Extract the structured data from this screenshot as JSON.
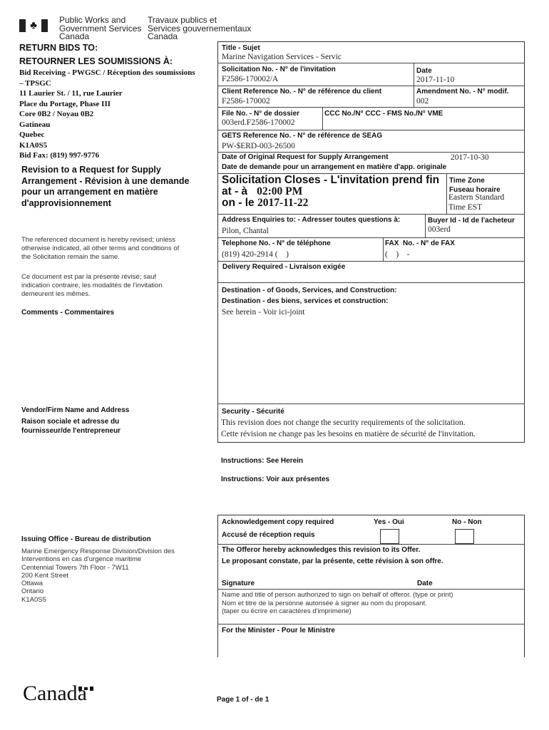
{
  "header": {
    "dept_en": [
      "Public Works and",
      "Government Services",
      "Canada"
    ],
    "dept_fr": [
      "Travaux publics et",
      "Services gouvernementaux",
      "Canada"
    ]
  },
  "return_bids": {
    "title_en": "RETURN BIDS TO:",
    "title_fr": "RETOURNER LES SOUMISSIONS À:",
    "lines": [
      "Bid Receiving - PWGSC / Réception des soumissions",
      "– TPSGC",
      "11 Laurier St. / 11, rue Laurier",
      "Place du Portage, Phase III",
      "Core 0B2 / Noyau 0B2",
      "Gatineau",
      "Quebec",
      "K1A0S5",
      "Bid Fax: (819) 997-9776"
    ]
  },
  "doc_title": [
    "Revision to a Request for Supply",
    "Arrangement - Révision à une demande",
    "pour un arrangement en matière",
    "d'approvisionnement"
  ],
  "notice_en": [
    "The referenced document is hereby revised; unless",
    "otherwise indicated, all other terms and conditions of",
    "the Solicitation remain the same."
  ],
  "notice_fr": [
    "Ce document est par la présente révisé; sauf",
    "indication contraire, les modalités de l'invitation",
    "demeurent les mêmes."
  ],
  "comments_label": "Comments - Commentaires",
  "vendor": {
    "label1": "Vendor/Firm Name and Address",
    "label2": "Raison sociale et adresse du",
    "label3": "fournisseur/de l'entrepreneur"
  },
  "issuing": {
    "label": "Issuing Office - Bureau de distribution",
    "lines": [
      "Marine Emergency Response Division/Division des",
      "Interventions en cas d'urgence maritime",
      "Centennial Towers 7th Floor - 7W11",
      "200 Kent Street",
      "Ottawa",
      "Ontario",
      "K1A0S5"
    ]
  },
  "form": {
    "title_label": "Title - Sujet",
    "title_value": "Marine Navigation Services - Servic",
    "solicitation_label": "Solicitation No. - N° de l'invitation",
    "solicitation_value": "F2586-170002/A",
    "date_label": "Date",
    "date_value": "2017-11-10",
    "client_ref_label": "Client Reference No. - N° de référence du client",
    "client_ref_value": "F2586-170002",
    "amendment_label": "Amendment No. - N° modif.",
    "amendment_value": "002",
    "file_label": "File No. - N° de dossier",
    "file_value": "003erd.F2586-170002",
    "ccc_label": "CCC No./N° CCC - FMS No./N° VME",
    "gets_label": "GETS Reference No. - N° de référence de SEAG",
    "gets_value": "PW-$ERD-003-26500",
    "orig_date_label_en": "Date of Original Request for Supply Arrangement",
    "orig_date_value": "2017-10-30",
    "orig_date_label_fr": "Date de demande pour un arrangement en matière d'app. originale",
    "closes_label": "Solicitation Closes - L'invitation prend fin",
    "closes_at_label": "at - à",
    "closes_time": "02:00 PM",
    "closes_on_label": "on - le",
    "closes_date": "2017-11-22",
    "tz_label1": "Time Zone",
    "tz_label2": "Fuseau horaire",
    "tz_value1": "Eastern Standard",
    "tz_value2": "Time EST",
    "enquiries_label": "Address Enquiries to: - Adresser toutes questions à:",
    "enquiries_value": "Pilon, Chantal",
    "buyer_label": "Buyer Id - Id de l'acheteur",
    "buyer_value": "003erd",
    "phone_label": "Telephone No. - N° de téléphone",
    "phone_value": "(819) 420-2914 (    )",
    "fax_label": "FAX  No. - N° de FAX",
    "fax_value": "(    )    -",
    "delivery_label": "Delivery Required - Livraison exigée",
    "dest_label_en": "Destination - of Goods, Services, and Construction:",
    "dest_label_fr": "Destination - des biens, services et construction:",
    "dest_value": "See herein - Voir ici-joint",
    "security_label": "Security - Sécurité",
    "security_en": "This revision does not change the security requirements of the solicitation.",
    "security_fr": "Cette révision ne change pas les besoins en matière de sécurité de l'invitation."
  },
  "instructions_en": "Instructions:  See Herein",
  "instructions_fr": "Instructions:  Voir aux présentes",
  "ack": {
    "label_en": "Acknowledgement copy required",
    "label_fr": "Accusé de réception requis",
    "yes": "Yes - Oui",
    "no": "No - Non",
    "offeror_en": "The Offeror hereby acknowledges this revision to its Offer.",
    "offeror_fr": "Le proposant constate, par la présente, cette révision à son offre.",
    "signature": "Signature",
    "date": "Date",
    "name_lines": [
      "Name and title of person authorized to sign on behalf of offeror. (type or print)",
      "Nom et titre de la personne autorisée à signer au nom du proposant.",
      "(taper ou écrire en caractères d'imprimerie)"
    ],
    "minister": "For the Minister - Pour le Ministre"
  },
  "footer": {
    "wordmark": "Canada",
    "page": "Page 1 of - de 1"
  }
}
